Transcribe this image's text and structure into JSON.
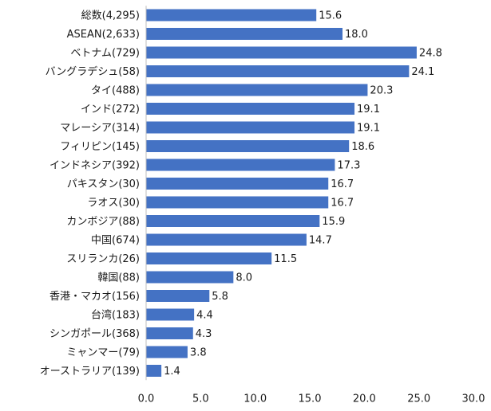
{
  "chart_data": {
    "type": "bar",
    "orientation": "horizontal",
    "categories": [
      "総数(4,295)",
      "ASEAN(2,633)",
      "ベトナム(729)",
      "バングラデシュ(58)",
      "タイ(488)",
      "インド(272)",
      "マレーシア(314)",
      "フィリピン(145)",
      "インドネシア(392)",
      "パキスタン(30)",
      "ラオス(30)",
      "カンボジア(88)",
      "中国(674)",
      "スリランカ(26)",
      "韓国(88)",
      "香港・マカオ(156)",
      "台湾(183)",
      "シンガポール(368)",
      "ミャンマー(79)",
      "オーストラリア(139)"
    ],
    "values": [
      15.6,
      18.0,
      24.8,
      24.1,
      20.3,
      19.1,
      19.1,
      18.6,
      17.3,
      16.7,
      16.7,
      15.9,
      14.7,
      11.5,
      8.0,
      5.8,
      4.4,
      4.3,
      3.8,
      1.4
    ],
    "value_labels": [
      "15.6",
      "18.0",
      "24.8",
      "24.1",
      "20.3",
      "19.1",
      "19.1",
      "18.6",
      "17.3",
      "16.7",
      "16.7",
      "15.9",
      "14.7",
      "11.5",
      "8.0",
      "5.8",
      "4.4",
      "4.3",
      "3.8",
      "1.4"
    ],
    "xlim": [
      0,
      30
    ],
    "x_ticks": [
      "0.0",
      "5.0",
      "10.0",
      "15.0",
      "20.0",
      "25.0",
      "30.0"
    ],
    "x_tick_values": [
      0,
      5,
      10,
      15,
      20,
      25,
      30
    ],
    "title": "",
    "xlabel": "",
    "ylabel": "",
    "grid": false,
    "legend": "none",
    "bar_color": "#4472C4",
    "axis_color": "#bfbfbf"
  }
}
